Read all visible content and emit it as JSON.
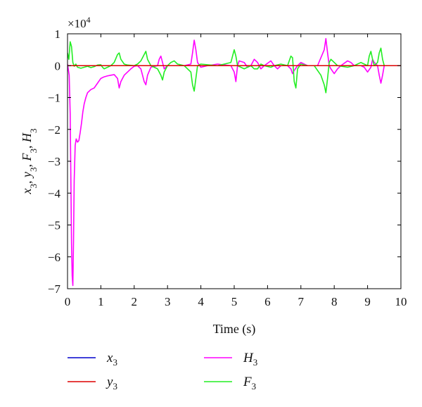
{
  "chart_data": {
    "type": "line",
    "xlabel": "Time (s)",
    "ylabel": "x3, y3, F3, H3",
    "y_multiplier_label": "×10",
    "y_multiplier_exp": "4",
    "xlim": [
      0,
      10
    ],
    "ylim": [
      -7,
      1
    ],
    "x_ticks": [
      "0",
      "1",
      "2",
      "3",
      "4",
      "5",
      "6",
      "7",
      "8",
      "9",
      "10"
    ],
    "y_ticks": [
      "1",
      "0",
      "−1",
      "−2",
      "−3",
      "−4",
      "−5",
      "−6",
      "−7"
    ],
    "grid": false,
    "legend_position": "bottom",
    "series": [
      {
        "name": "x3",
        "color": "#0000cc",
        "points": [
          [
            0,
            0
          ],
          [
            10,
            0
          ]
        ]
      },
      {
        "name": "y3",
        "color": "#dd0000",
        "points": [
          [
            0,
            0
          ],
          [
            1.8,
            0
          ],
          [
            2.0,
            0
          ],
          [
            10,
            0
          ]
        ]
      },
      {
        "name": "H3",
        "color": "#ff00ff",
        "points": [
          [
            0,
            0.05
          ],
          [
            0.05,
            -0.3
          ],
          [
            0.08,
            -1.5
          ],
          [
            0.1,
            -3.5
          ],
          [
            0.12,
            -5.6
          ],
          [
            0.14,
            -6.6
          ],
          [
            0.16,
            -6.9
          ],
          [
            0.18,
            -5.5
          ],
          [
            0.2,
            -3.6
          ],
          [
            0.23,
            -2.5
          ],
          [
            0.26,
            -2.3
          ],
          [
            0.3,
            -2.4
          ],
          [
            0.34,
            -2.35
          ],
          [
            0.38,
            -2.1
          ],
          [
            0.42,
            -1.8
          ],
          [
            0.46,
            -1.45
          ],
          [
            0.5,
            -1.2
          ],
          [
            0.55,
            -1.0
          ],
          [
            0.6,
            -0.85
          ],
          [
            0.7,
            -0.75
          ],
          [
            0.8,
            -0.7
          ],
          [
            0.9,
            -0.55
          ],
          [
            1.0,
            -0.4
          ],
          [
            1.1,
            -0.35
          ],
          [
            1.2,
            -0.32
          ],
          [
            1.3,
            -0.3
          ],
          [
            1.4,
            -0.28
          ],
          [
            1.5,
            -0.4
          ],
          [
            1.55,
            -0.7
          ],
          [
            1.6,
            -0.5
          ],
          [
            1.7,
            -0.3
          ],
          [
            1.8,
            -0.2
          ],
          [
            1.9,
            -0.1
          ],
          [
            2.0,
            -0.02
          ],
          [
            2.1,
            0
          ],
          [
            2.2,
            -0.1
          ],
          [
            2.3,
            -0.5
          ],
          [
            2.35,
            -0.6
          ],
          [
            2.4,
            -0.3
          ],
          [
            2.5,
            -0.05
          ],
          [
            2.7,
            0
          ],
          [
            2.75,
            0.2
          ],
          [
            2.8,
            0.3
          ],
          [
            2.85,
            0.1
          ],
          [
            2.9,
            -0.1
          ],
          [
            3.0,
            0
          ],
          [
            3.5,
            0
          ],
          [
            3.7,
            0.05
          ],
          [
            3.75,
            0.4
          ],
          [
            3.8,
            0.8
          ],
          [
            3.85,
            0.5
          ],
          [
            3.9,
            0.1
          ],
          [
            4.0,
            -0.05
          ],
          [
            4.2,
            0
          ],
          [
            4.5,
            0.05
          ],
          [
            4.9,
            0
          ],
          [
            5.0,
            -0.2
          ],
          [
            5.05,
            -0.5
          ],
          [
            5.1,
            0
          ],
          [
            5.15,
            0.15
          ],
          [
            5.3,
            0.1
          ],
          [
            5.4,
            -0.05
          ],
          [
            5.5,
            0
          ],
          [
            5.6,
            0.2
          ],
          [
            5.7,
            0.1
          ],
          [
            5.8,
            -0.1
          ],
          [
            5.9,
            0
          ],
          [
            6.1,
            0.15
          ],
          [
            6.2,
            0
          ],
          [
            6.3,
            -0.1
          ],
          [
            6.4,
            0
          ],
          [
            6.6,
            0
          ],
          [
            6.7,
            -0.1
          ],
          [
            6.75,
            -0.25
          ],
          [
            6.8,
            -0.15
          ],
          [
            6.9,
            0
          ],
          [
            7.0,
            0.1
          ],
          [
            7.2,
            0
          ],
          [
            7.5,
            0
          ],
          [
            7.7,
            0.5
          ],
          [
            7.75,
            0.85
          ],
          [
            7.8,
            0.4
          ],
          [
            7.85,
            0
          ],
          [
            7.9,
            -0.1
          ],
          [
            8.0,
            -0.25
          ],
          [
            8.1,
            -0.1
          ],
          [
            8.2,
            0
          ],
          [
            8.4,
            0.15
          ],
          [
            8.5,
            0.1
          ],
          [
            8.6,
            0
          ],
          [
            8.8,
            0
          ],
          [
            8.9,
            -0.05
          ],
          [
            9.0,
            -0.2
          ],
          [
            9.1,
            -0.05
          ],
          [
            9.15,
            0.2
          ],
          [
            9.2,
            0.1
          ],
          [
            9.3,
            0
          ],
          [
            9.35,
            -0.3
          ],
          [
            9.4,
            -0.55
          ],
          [
            9.45,
            -0.3
          ],
          [
            9.5,
            0
          ],
          [
            10,
            0
          ]
        ]
      },
      {
        "name": "F3",
        "color": "#22ee22",
        "points": [
          [
            0,
            0.4
          ],
          [
            0.04,
            0.2
          ],
          [
            0.08,
            0.75
          ],
          [
            0.12,
            0.6
          ],
          [
            0.16,
            0.1
          ],
          [
            0.2,
            -0.02
          ],
          [
            0.25,
            0.05
          ],
          [
            0.3,
            -0.05
          ],
          [
            0.4,
            -0.08
          ],
          [
            0.5,
            -0.05
          ],
          [
            0.6,
            -0.02
          ],
          [
            0.7,
            -0.06
          ],
          [
            0.8,
            -0.03
          ],
          [
            0.9,
            0.02
          ],
          [
            1.0,
            0.03
          ],
          [
            1.05,
            -0.05
          ],
          [
            1.1,
            -0.1
          ],
          [
            1.2,
            -0.05
          ],
          [
            1.3,
            0
          ],
          [
            1.4,
            0.1
          ],
          [
            1.5,
            0.35
          ],
          [
            1.55,
            0.4
          ],
          [
            1.6,
            0.2
          ],
          [
            1.7,
            0.05
          ],
          [
            1.8,
            0.02
          ],
          [
            2.0,
            0
          ],
          [
            2.1,
            0.05
          ],
          [
            2.2,
            0.15
          ],
          [
            2.3,
            0.35
          ],
          [
            2.35,
            0.45
          ],
          [
            2.4,
            0.2
          ],
          [
            2.5,
            0
          ],
          [
            2.7,
            -0.1
          ],
          [
            2.8,
            -0.3
          ],
          [
            2.85,
            -0.45
          ],
          [
            2.9,
            -0.2
          ],
          [
            3.0,
            0
          ],
          [
            3.1,
            0.1
          ],
          [
            3.2,
            0.15
          ],
          [
            3.3,
            0.05
          ],
          [
            3.5,
            0
          ],
          [
            3.7,
            -0.2
          ],
          [
            3.75,
            -0.6
          ],
          [
            3.8,
            -0.8
          ],
          [
            3.85,
            -0.4
          ],
          [
            3.9,
            0
          ],
          [
            4.0,
            0.05
          ],
          [
            4.5,
            0
          ],
          [
            4.9,
            0.1
          ],
          [
            4.95,
            0.3
          ],
          [
            5.0,
            0.5
          ],
          [
            5.05,
            0.3
          ],
          [
            5.1,
            0
          ],
          [
            5.3,
            -0.1
          ],
          [
            5.4,
            -0.05
          ],
          [
            5.5,
            0
          ],
          [
            5.6,
            -0.1
          ],
          [
            5.7,
            -0.1
          ],
          [
            5.8,
            0.05
          ],
          [
            5.9,
            0
          ],
          [
            6.1,
            -0.05
          ],
          [
            6.2,
            0
          ],
          [
            6.4,
            0.05
          ],
          [
            6.6,
            0
          ],
          [
            6.7,
            0.3
          ],
          [
            6.75,
            0.25
          ],
          [
            6.8,
            -0.5
          ],
          [
            6.85,
            -0.7
          ],
          [
            6.9,
            -0.1
          ],
          [
            7.0,
            0.05
          ],
          [
            7.2,
            0
          ],
          [
            7.4,
            0
          ],
          [
            7.6,
            -0.3
          ],
          [
            7.7,
            -0.6
          ],
          [
            7.75,
            -0.85
          ],
          [
            7.8,
            -0.4
          ],
          [
            7.85,
            0.1
          ],
          [
            7.9,
            0.2
          ],
          [
            8.0,
            0.1
          ],
          [
            8.1,
            0
          ],
          [
            8.4,
            -0.05
          ],
          [
            8.6,
            0
          ],
          [
            8.8,
            0.1
          ],
          [
            8.9,
            0.05
          ],
          [
            9.0,
            0
          ],
          [
            9.05,
            0.3
          ],
          [
            9.1,
            0.45
          ],
          [
            9.15,
            0.2
          ],
          [
            9.2,
            0
          ],
          [
            9.3,
            0.1
          ],
          [
            9.35,
            0.4
          ],
          [
            9.4,
            0.55
          ],
          [
            9.45,
            0.2
          ],
          [
            9.5,
            0
          ],
          [
            10,
            0
          ]
        ]
      }
    ],
    "legend": [
      {
        "name": "x",
        "sub": "3",
        "color": "#0000cc"
      },
      {
        "name": "y",
        "sub": "3",
        "color": "#dd0000"
      },
      {
        "name": "H",
        "sub": "3",
        "color": "#ff00ff"
      },
      {
        "name": "F",
        "sub": "3",
        "color": "#22ee22"
      }
    ]
  }
}
